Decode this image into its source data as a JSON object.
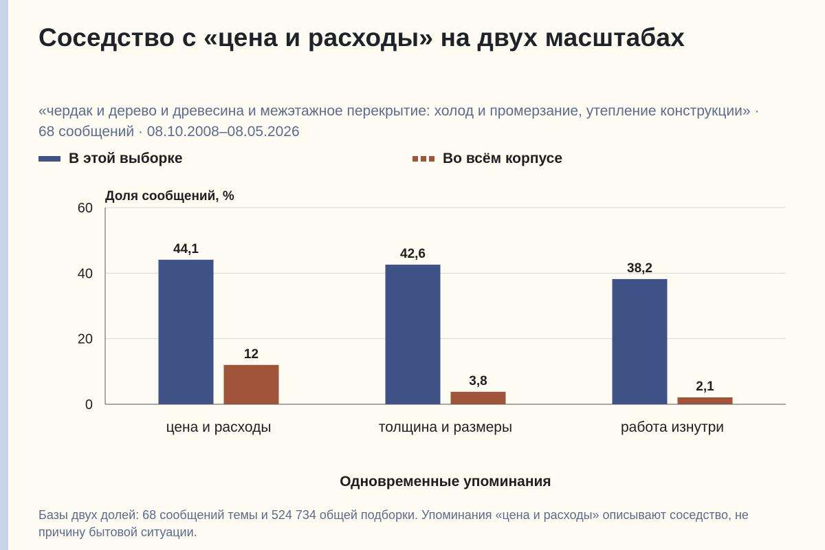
{
  "title": "Соседство с «цена и расходы» на двух масштабах",
  "subtitle": "«чердак и дерево и древесина и межэтажное перекрытие: холод и промерзание, утепление конструкции» · 68 сообщений · 08.10.2008–08.05.2026",
  "legend": [
    {
      "label": "В этой выборке",
      "color": "#3e5288",
      "style": "solid"
    },
    {
      "label": "Во всём корпусе",
      "color": "#a0553a",
      "style": "dashed"
    }
  ],
  "footer": "Базы двух долей: 68 сообщений темы и 524 734 общей подборки. Упоминания «цена и расходы» описывают соседство, не причину бытовой ситуации.",
  "chart_data": {
    "type": "bar",
    "categories": [
      "цена и расходы",
      "толщина и размеры",
      "работа изнутри"
    ],
    "series": [
      {
        "name": "В этой выборке",
        "values": [
          44.1,
          42.6,
          38.2
        ],
        "labels": [
          "44,1",
          "42,6",
          "38,2"
        ],
        "color": "#3e5288"
      },
      {
        "name": "Во всём корпусе",
        "values": [
          12,
          3.8,
          2.1
        ],
        "labels": [
          "12",
          "3,8",
          "2,1"
        ],
        "color": "#a0553a"
      }
    ],
    "ylabel": "Доля сообщений, %",
    "xlabel": "Одновременные упоминания",
    "ylim": [
      0,
      60
    ],
    "yticks": [
      0,
      20,
      40,
      60
    ],
    "grid": true,
    "legend_position": "top"
  }
}
